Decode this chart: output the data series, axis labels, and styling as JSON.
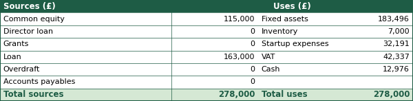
{
  "header_bg": "#1e5c45",
  "header_text_color": "#ffffff",
  "row_bg": "#ffffff",
  "total_bg": "#d5e8d4",
  "total_text_color": "#1e5c45",
  "border_color": "#1e5c45",
  "text_color": "#000000",
  "col1_header": "Sources (£)",
  "col2_header": "Uses (£)",
  "sources": [
    {
      "label": "Common equity",
      "value": "115,000"
    },
    {
      "label": "Director loan",
      "value": "0"
    },
    {
      "label": "Grants",
      "value": "0"
    },
    {
      "label": "Loan",
      "value": "163,000"
    },
    {
      "label": "Overdraft",
      "value": "0"
    },
    {
      "label": "Accounts payables",
      "value": "0"
    }
  ],
  "uses": [
    {
      "label": "Fixed assets",
      "value": "183,496"
    },
    {
      "label": "Inventory",
      "value": "7,000"
    },
    {
      "label": "Startup expenses",
      "value": "32,191"
    },
    {
      "label": "VAT",
      "value": "42,337"
    },
    {
      "label": "Cash",
      "value": "12,976"
    },
    {
      "label": "",
      "value": ""
    }
  ],
  "total_sources_label": "Total sources",
  "total_sources_value": "278,000",
  "total_uses_label": "Total uses",
  "total_uses_value": "278,000",
  "col_splits": [
    0.0,
    0.415,
    0.625,
    1.0
  ],
  "font_size_header": 8.5,
  "font_size_body": 8.0,
  "font_size_total": 8.5
}
